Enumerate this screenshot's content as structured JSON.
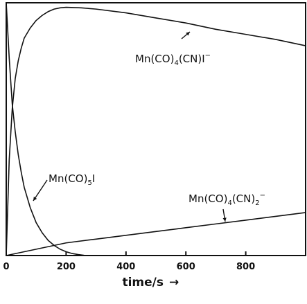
{
  "chart_data": {
    "type": "line",
    "title": "",
    "xlabel": "time/s",
    "xlabel_arrow": "→",
    "ylabel": "",
    "xlim": [
      0,
      1000
    ],
    "ylim": [
      0,
      1
    ],
    "grid": false,
    "x_ticks": [
      {
        "value": 0,
        "label": "0"
      },
      {
        "value": 200,
        "label": "200"
      },
      {
        "value": 400,
        "label": "400"
      },
      {
        "value": 600,
        "label": "600"
      },
      {
        "value": 800,
        "label": "800"
      }
    ],
    "series": [
      {
        "name": "Mn(CO)5I",
        "label": {
          "parts": [
            {
              "t": "Mn(CO)"
            },
            {
              "t": "5",
              "sub": true
            },
            {
              "t": "I"
            }
          ]
        },
        "x": [
          0,
          10,
          20,
          30,
          40,
          50,
          60,
          80,
          100,
          120,
          140,
          160,
          180,
          200,
          220,
          240,
          260,
          280
        ],
        "y": [
          1.0,
          0.78,
          0.6,
          0.49,
          0.4,
          0.33,
          0.27,
          0.19,
          0.13,
          0.09,
          0.06,
          0.04,
          0.025,
          0.015,
          0.008,
          0.004,
          0.001,
          0.0
        ]
      },
      {
        "name": "Mn(CO)4(CN)I-",
        "label": {
          "parts": [
            {
              "t": "Mn(CO)"
            },
            {
              "t": "4",
              "sub": true
            },
            {
              "t": "(CN)I"
            },
            {
              "t": "−",
              "sup": true
            }
          ]
        },
        "x": [
          0,
          10,
          20,
          30,
          40,
          50,
          60,
          80,
          100,
          120,
          140,
          160,
          180,
          200,
          250,
          300,
          400,
          500,
          600,
          700,
          800,
          900,
          1000
        ],
        "y": [
          0.0,
          0.38,
          0.58,
          0.7,
          0.77,
          0.82,
          0.86,
          0.9,
          0.93,
          0.95,
          0.965,
          0.975,
          0.98,
          0.982,
          0.98,
          0.975,
          0.96,
          0.94,
          0.92,
          0.895,
          0.875,
          0.855,
          0.83
        ]
      },
      {
        "name": "Mn(CO)4(CN)2-",
        "label": {
          "parts": [
            {
              "t": "Mn(CO)"
            },
            {
              "t": "4",
              "sub": true
            },
            {
              "t": "(CN)"
            },
            {
              "t": "2",
              "sub": true
            },
            {
              "t": "−",
              "sup": true
            }
          ]
        },
        "x": [
          0,
          100,
          200,
          300,
          400,
          500,
          600,
          700,
          800,
          900,
          1000
        ],
        "y": [
          0.0,
          0.025,
          0.05,
          0.065,
          0.08,
          0.095,
          0.11,
          0.125,
          0.14,
          0.155,
          0.17
        ]
      }
    ]
  }
}
